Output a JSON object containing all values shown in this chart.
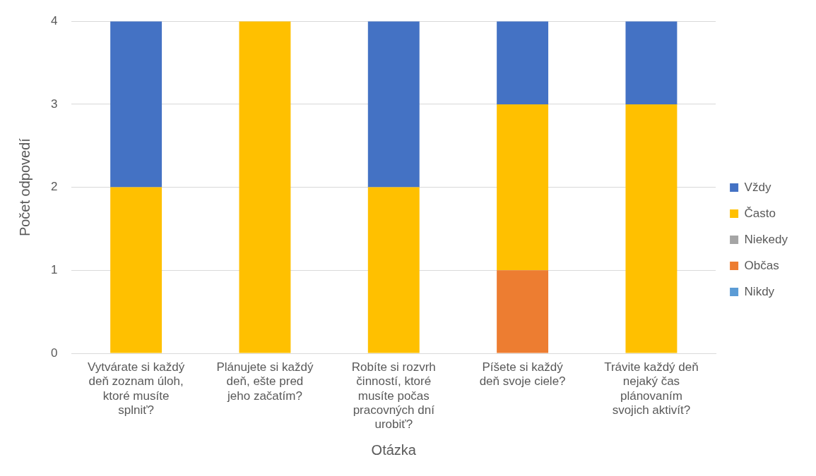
{
  "chart_data": {
    "type": "bar",
    "stacked": true,
    "xlabel": "Otázka",
    "ylabel": "Počet odpovedí",
    "categories": [
      "Vytvárate si každý deň zoznam úloh, ktoré musíte splniť?",
      "Plánujete si každý deň, ešte pred jeho začatím?",
      "Robíte si rozvrh činností, ktoré musíte počas pracovných dní urobiť?",
      "Píšete si každý deň svoje ciele?",
      "Trávite každý deň nejaký čas plánovaním svojich aktivít?"
    ],
    "series": [
      {
        "name": "Nikdy",
        "color": "#5b9bd5",
        "values": [
          0,
          0,
          0,
          0,
          0
        ]
      },
      {
        "name": "Občas",
        "color": "#ed7d31",
        "values": [
          0,
          0,
          0,
          1,
          0
        ]
      },
      {
        "name": "Niekedy",
        "color": "#a5a5a5",
        "values": [
          0,
          0,
          0,
          0,
          0
        ]
      },
      {
        "name": "Často",
        "color": "#ffc000",
        "values": [
          2,
          4,
          2,
          2,
          3
        ]
      },
      {
        "name": "Vždy",
        "color": "#4472c4",
        "values": [
          2,
          0,
          2,
          1,
          1
        ]
      }
    ],
    "ylim": [
      0,
      4
    ],
    "yticks": [
      0,
      1,
      2,
      3,
      4
    ],
    "grid": "y",
    "legend": "right"
  }
}
